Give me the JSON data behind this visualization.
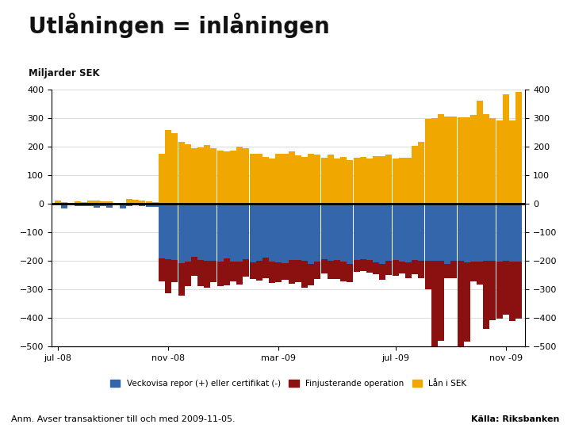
{
  "title": "Utlåningen = inlåningen",
  "subtitle": "Miljarder SEK",
  "annotation": "Anm. Avser transaktioner till och med 2009-11-05.",
  "source": "Källa: Riksbanken",
  "ylim": [
    -500,
    400
  ],
  "yticks": [
    -500,
    -400,
    -300,
    -200,
    -100,
    0,
    100,
    200,
    300,
    400
  ],
  "colors": {
    "blue": "#3366AA",
    "red": "#8B1010",
    "gold": "#F0A800",
    "background": "#FFFFFF",
    "zero_line": "#000000",
    "grid": "#CCCCCC",
    "footer_bar": "#1C3F8C"
  },
  "legend": [
    "Veckovisa repor (+) eller certifikat (-)",
    "Finjusterande operation",
    "Lån i SEK"
  ],
  "x_tick_labels": [
    "jul -08",
    "nov -08",
    "mar -09",
    "jul -09",
    "nov -09"
  ],
  "xtick_pos": [
    0,
    17,
    34,
    52,
    69
  ],
  "n_weeks": 72
}
